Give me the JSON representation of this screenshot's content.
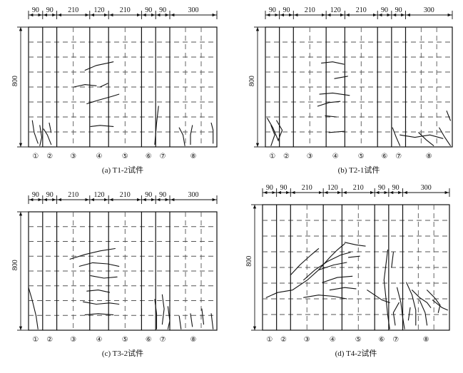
{
  "column_widths": [
    90,
    90,
    210,
    120,
    210,
    90,
    90,
    300
  ],
  "column_width_labels": [
    "90",
    "90",
    "210",
    "120",
    "210",
    "90",
    "90",
    "300"
  ],
  "height_label": "800",
  "column_markers": [
    "①",
    "②",
    "③",
    "④",
    "⑤",
    "⑥",
    "⑦",
    "⑧"
  ],
  "panels": [
    {
      "id": "a",
      "caption": "(a) T1-2试件"
    },
    {
      "id": "b",
      "caption": "(b) T2-1试件"
    },
    {
      "id": "c",
      "caption": "(c) T3-2试件"
    },
    {
      "id": "d",
      "caption": "(d) T4-2试件"
    }
  ],
  "colors": {
    "line": "#111111",
    "dash": "#555555",
    "background": "#ffffff"
  }
}
